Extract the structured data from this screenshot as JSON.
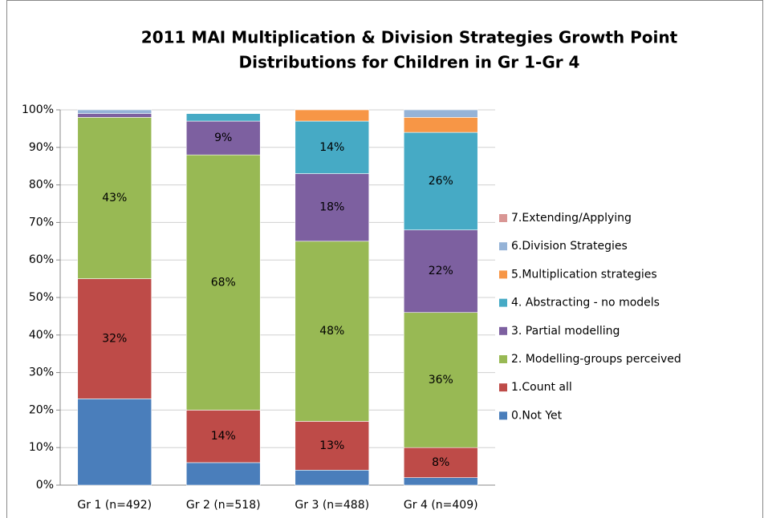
{
  "chart_data": {
    "type": "stacked_bar",
    "title": [
      "2011 MAI Multiplication & Division Strategies Growth Point",
      "Distributions for Children in Gr 1-Gr 4"
    ],
    "categories": [
      "Gr 1  (n=492)",
      "Gr 2 (n=518)",
      "Gr 3 (n=488)",
      "Gr 4  (n=409)"
    ],
    "series": [
      {
        "name": "0.Not Yet",
        "color": "#4a7ebb",
        "values": [
          23,
          6,
          4,
          2
        ],
        "value_labels": [
          null,
          null,
          null,
          null
        ]
      },
      {
        "name": "1.Count all",
        "color": "#be4b48",
        "values": [
          32,
          14,
          13,
          8
        ],
        "value_labels": [
          "32%",
          "14%",
          "13%",
          "8%"
        ]
      },
      {
        "name": "2. Modelling-groups perceived",
        "color": "#98b954",
        "values": [
          43,
          68,
          48,
          36
        ],
        "value_labels": [
          "43%",
          "68%",
          "48%",
          "36%"
        ]
      },
      {
        "name": "3. Partial modelling",
        "color": "#7d60a0",
        "values": [
          1,
          9,
          18,
          22
        ],
        "value_labels": [
          null,
          "9%",
          "18%",
          "22%"
        ]
      },
      {
        "name": "4. Abstracting - no models",
        "color": "#46aac5",
        "values": [
          0,
          2,
          14,
          26
        ],
        "value_labels": [
          null,
          null,
          "14%",
          "26%"
        ]
      },
      {
        "name": "5.Multiplication strategies",
        "color": "#f79646",
        "values": [
          0,
          0,
          3,
          4
        ],
        "value_labels": [
          null,
          null,
          null,
          null
        ]
      },
      {
        "name": "6.Division Strategies",
        "color": "#95b3d7",
        "values": [
          1,
          0,
          0,
          2
        ],
        "value_labels": [
          null,
          null,
          null,
          null
        ]
      },
      {
        "name": "7.Extending/Applying",
        "color": "#d99694",
        "values": [
          0,
          0,
          0,
          0
        ],
        "value_labels": [
          null,
          null,
          null,
          null
        ]
      }
    ],
    "ylim": [
      0,
      100
    ],
    "yticks": [
      {
        "value": 0,
        "label": "0%"
      },
      {
        "value": 10,
        "label": "10%"
      },
      {
        "value": 20,
        "label": "20%"
      },
      {
        "value": 30,
        "label": "30%"
      },
      {
        "value": 40,
        "label": "40%"
      },
      {
        "value": 50,
        "label": "50%"
      },
      {
        "value": 60,
        "label": "60%"
      },
      {
        "value": 70,
        "label": "70%"
      },
      {
        "value": 80,
        "label": "80%"
      },
      {
        "value": 90,
        "label": "90%"
      },
      {
        "value": 100,
        "label": "100%"
      }
    ],
    "grid": true,
    "legend": "right"
  }
}
